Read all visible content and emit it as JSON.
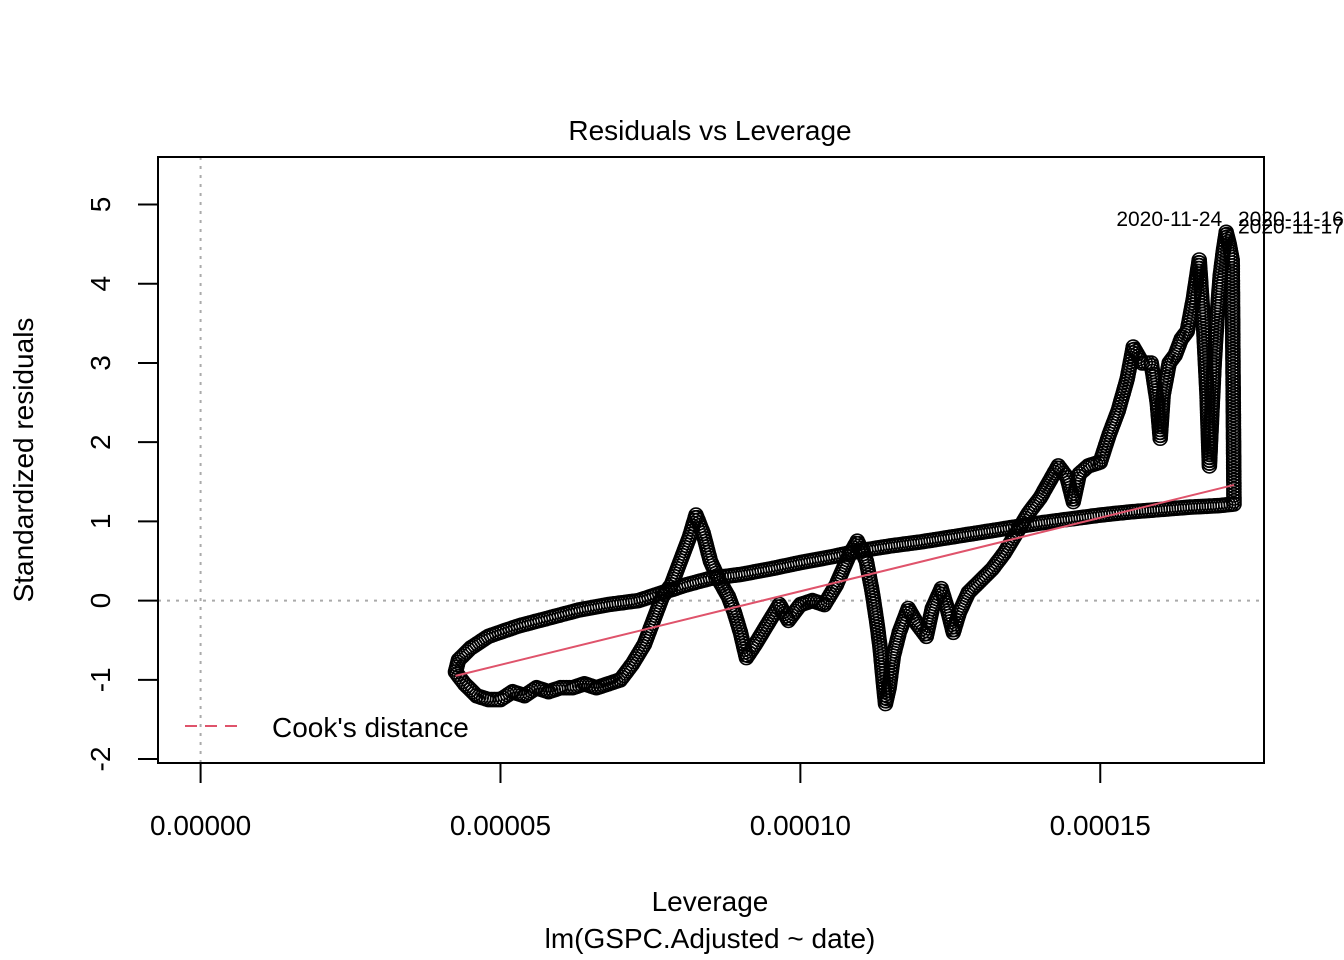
{
  "chart_data": {
    "type": "scatter",
    "title": "Residuals vs Leverage",
    "xlabel": "Leverage",
    "subtitle": "lm(GSPC.Adjusted ~ date)",
    "ylabel": "Standardized residuals",
    "xlim": [
      -7.1e-06,
      0.0001773
    ],
    "ylim": [
      -2.05,
      5.6
    ],
    "x_ticks": [
      0.0,
      5e-05,
      0.0001,
      0.00015
    ],
    "x_tick_labels": [
      "0.00000",
      "0.00005",
      "0.00010",
      "0.00015"
    ],
    "y_ticks": [
      -2,
      -1,
      0,
      1,
      2,
      3,
      4,
      5
    ],
    "y_tick_labels": [
      "-2",
      "-1",
      "0",
      "1",
      "2",
      "3",
      "4",
      "5"
    ],
    "reference_lines": {
      "h": 0,
      "v": 0
    },
    "legend": {
      "position": "bottom-left",
      "label": "Cook's distance",
      "color": "#DF536B"
    },
    "colors": {
      "points": "#000000",
      "smooth": "#DF536B",
      "ref": "#aaaaaa"
    },
    "series_path": [
      [
        4.25e-05,
        -0.9
      ],
      [
        4.3e-05,
        -0.75
      ],
      [
        4.5e-05,
        -0.6
      ],
      [
        4.8e-05,
        -0.45
      ],
      [
        5.3e-05,
        -0.32
      ],
      [
        5.8e-05,
        -0.22
      ],
      [
        6.3e-05,
        -0.12
      ],
      [
        6.8e-05,
        -0.05
      ],
      [
        7.3e-05,
        0.0
      ],
      [
        7.7e-05,
        0.1
      ],
      [
        8.1e-05,
        0.2
      ],
      [
        8.5e-05,
        0.28
      ],
      [
        9e-05,
        0.33
      ],
      [
        9.5e-05,
        0.4
      ],
      [
        0.0001,
        0.48
      ],
      [
        0.000105,
        0.55
      ],
      [
        0.00011,
        0.63
      ],
      [
        0.000115,
        0.69
      ],
      [
        0.00012,
        0.74
      ],
      [
        0.000125,
        0.8
      ],
      [
        0.00013,
        0.86
      ],
      [
        0.000135,
        0.92
      ],
      [
        0.00014,
        0.98
      ],
      [
        0.000145,
        1.03
      ],
      [
        0.00015,
        1.08
      ],
      [
        0.000155,
        1.12
      ],
      [
        0.00016,
        1.15
      ],
      [
        0.000165,
        1.18
      ],
      [
        0.00017,
        1.2
      ],
      [
        0.0001723,
        1.22
      ],
      [
        0.000172,
        4.3
      ],
      [
        0.0001715,
        4.5
      ],
      [
        0.000171,
        4.65
      ],
      [
        0.0001705,
        4.4
      ],
      [
        0.00017,
        4.1
      ],
      [
        0.0001695,
        3.6
      ],
      [
        0.000169,
        3.0
      ],
      [
        0.0001685,
        2.2
      ],
      [
        0.0001682,
        1.7
      ],
      [
        0.0001678,
        2.6
      ],
      [
        0.0001672,
        3.5
      ],
      [
        0.0001665,
        4.3
      ],
      [
        0.0001655,
        3.8
      ],
      [
        0.0001645,
        3.4
      ],
      [
        0.0001635,
        3.3
      ],
      [
        0.0001625,
        3.1
      ],
      [
        0.0001615,
        3.0
      ],
      [
        0.0001605,
        2.6
      ],
      [
        0.00016,
        2.05
      ],
      [
        0.0001595,
        2.5
      ],
      [
        0.0001585,
        3.0
      ],
      [
        0.000157,
        3.0
      ],
      [
        0.0001555,
        3.2
      ],
      [
        0.0001545,
        2.8
      ],
      [
        0.000153,
        2.4
      ],
      [
        0.0001515,
        2.1
      ],
      [
        0.00015,
        1.75
      ],
      [
        0.000148,
        1.7
      ],
      [
        0.0001465,
        1.6
      ],
      [
        0.0001455,
        1.25
      ],
      [
        0.0001445,
        1.55
      ],
      [
        0.000143,
        1.7
      ],
      [
        0.0001415,
        1.5
      ],
      [
        0.00014,
        1.3
      ],
      [
        0.000138,
        1.1
      ],
      [
        0.000136,
        0.85
      ],
      [
        0.000134,
        0.6
      ],
      [
        0.000132,
        0.4
      ],
      [
        0.00013,
        0.25
      ],
      [
        0.000128,
        0.1
      ],
      [
        0.0001265,
        -0.15
      ],
      [
        0.0001255,
        -0.4
      ],
      [
        0.0001245,
        -0.1
      ],
      [
        0.0001235,
        0.15
      ],
      [
        0.000122,
        -0.1
      ],
      [
        0.000121,
        -0.45
      ],
      [
        0.0001195,
        -0.3
      ],
      [
        0.000118,
        -0.1
      ],
      [
        0.0001165,
        -0.4
      ],
      [
        0.0001155,
        -0.7
      ],
      [
        0.0001148,
        -1.1
      ],
      [
        0.0001142,
        -1.3
      ],
      [
        0.0001138,
        -1.0
      ],
      [
        0.0001133,
        -0.6
      ],
      [
        0.0001128,
        -0.3
      ],
      [
        0.000112,
        0.1
      ],
      [
        0.000111,
        0.5
      ],
      [
        0.0001095,
        0.75
      ],
      [
        0.000108,
        0.55
      ],
      [
        0.000106,
        0.2
      ],
      [
        0.000104,
        -0.05
      ],
      [
        0.000102,
        0.0
      ],
      [
        0.0001,
        -0.05
      ],
      [
        9.8e-05,
        -0.25
      ],
      [
        9.65e-05,
        -0.05
      ],
      [
        9.45e-05,
        -0.3
      ],
      [
        9.25e-05,
        -0.55
      ],
      [
        9.1e-05,
        -0.72
      ],
      [
        9e-05,
        -0.4
      ],
      [
        8.9e-05,
        -0.15
      ],
      [
        8.8e-05,
        0.05
      ],
      [
        8.65e-05,
        0.25
      ],
      [
        8.5e-05,
        0.5
      ],
      [
        8.38e-05,
        0.85
      ],
      [
        8.26e-05,
        1.08
      ],
      [
        8.15e-05,
        0.8
      ],
      [
        8e-05,
        0.5
      ],
      [
        7.85e-05,
        0.2
      ],
      [
        7.7e-05,
        0.05
      ],
      [
        7.55e-05,
        -0.25
      ],
      [
        7.4e-05,
        -0.55
      ],
      [
        7.2e-05,
        -0.8
      ],
      [
        7e-05,
        -1.0
      ],
      [
        6.8e-05,
        -1.05
      ],
      [
        6.6e-05,
        -1.1
      ],
      [
        6.4e-05,
        -1.05
      ],
      [
        6.2e-05,
        -1.1
      ],
      [
        6e-05,
        -1.1
      ],
      [
        5.8e-05,
        -1.15
      ],
      [
        5.6e-05,
        -1.1
      ],
      [
        5.4e-05,
        -1.2
      ],
      [
        5.2e-05,
        -1.15
      ],
      [
        5e-05,
        -1.25
      ],
      [
        4.8e-05,
        -1.25
      ],
      [
        4.6e-05,
        -1.2
      ],
      [
        4.4e-05,
        -1.05
      ],
      [
        4.25e-05,
        -0.9
      ]
    ],
    "smooth_line": [
      [
        4.25e-05,
        -0.95
      ],
      [
        0.0001723,
        1.46
      ]
    ],
    "point_labels": [
      {
        "text": "2020-11-24",
        "x": 0.0001715,
        "y": 4.82
      },
      {
        "text": "2020-11-16",
        "x": 0.0001718,
        "y": 4.82
      },
      {
        "text": "2020-11-17",
        "x": 0.0001718,
        "y": 4.72
      }
    ]
  }
}
